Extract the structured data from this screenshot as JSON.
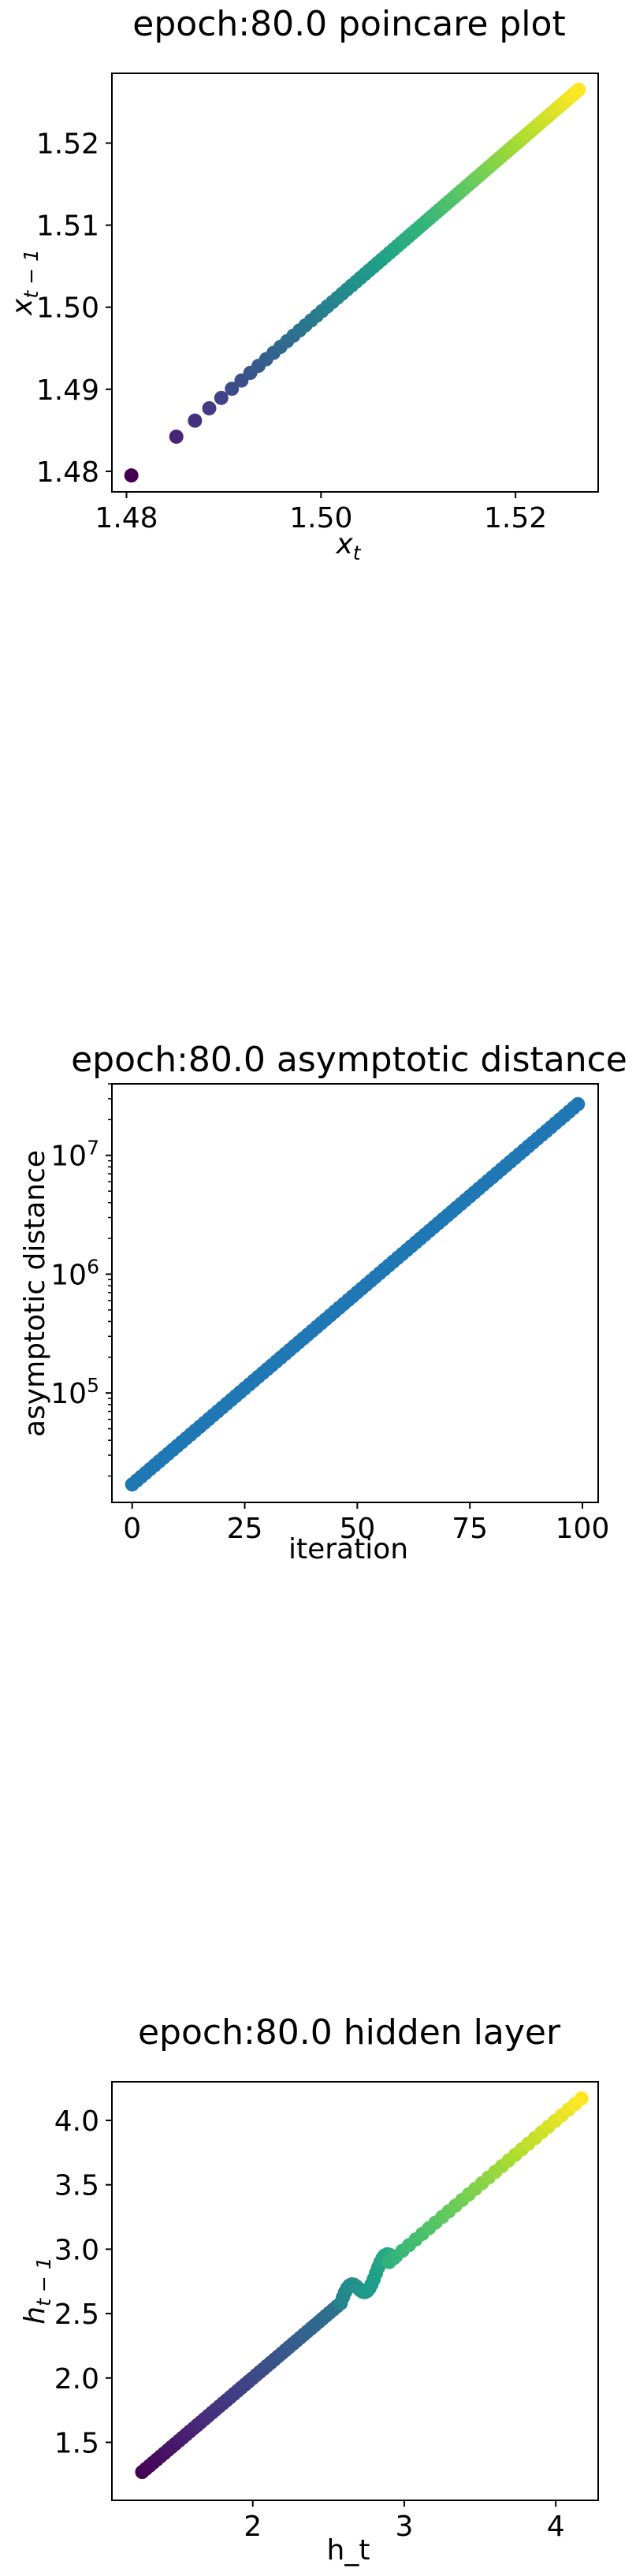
{
  "chart_data": [
    {
      "type": "scatter",
      "title": "epoch:80.0 poincare plot",
      "xlabel_main": "x",
      "xlabel_sub": "t",
      "ylabel_main": "x",
      "ylabel_sub": "t − 1",
      "xlim": [
        1.4785,
        1.5285
      ],
      "ylim": [
        1.4775,
        1.5285
      ],
      "xticks": [
        1.48,
        1.5,
        1.52
      ],
      "xtick_labels": [
        "1.48",
        "1.50",
        "1.52"
      ],
      "yticks": [
        1.48,
        1.49,
        1.5,
        1.51,
        1.52
      ],
      "ytick_labels": [
        "1.48",
        "1.49",
        "1.50",
        "1.51",
        "1.52"
      ],
      "colormap": "viridis",
      "points": {
        "n": 100,
        "x_start": 1.4805,
        "x_end": 1.5265,
        "y_start": 1.4795,
        "y_end": 1.5265,
        "spacing": "decreasing"
      }
    },
    {
      "type": "scatter",
      "title": "epoch:80.0 asymptotic distance",
      "xlabel": "iteration",
      "ylabel": "asymptotic distance",
      "yscale": "log",
      "xlim": [
        -4.5,
        103.5
      ],
      "ylim": [
        12000,
        40000000
      ],
      "xticks": [
        0,
        25,
        50,
        75,
        100
      ],
      "xtick_labels": [
        "0",
        "25",
        "50",
        "75",
        "100"
      ],
      "yticks": [
        100000,
        1000000,
        10000000
      ],
      "ytick_labels": [
        {
          "base": "10",
          "exp": "5"
        },
        {
          "base": "10",
          "exp": "6"
        },
        {
          "base": "10",
          "exp": "7"
        }
      ],
      "color": "#1f77b4",
      "points": {
        "n": 100,
        "x_start": 0,
        "x_end": 99,
        "y_start": 17000,
        "y_end": 27000000
      }
    },
    {
      "type": "scatter",
      "title": "epoch:80.0 hidden layer",
      "xlabel": "h_t",
      "ylabel_main": "h",
      "ylabel_sub": "t − 1",
      "xlim": [
        1.07,
        4.28
      ],
      "ylim": [
        1.05,
        4.3
      ],
      "xticks": [
        2,
        3,
        4
      ],
      "xtick_labels": [
        "2",
        "3",
        "4"
      ],
      "yticks": [
        1.5,
        2.0,
        2.5,
        3.0,
        3.5,
        4.0
      ],
      "ytick_labels": [
        "1.5",
        "2.0",
        "2.5",
        "3.0",
        "3.5",
        "4.0"
      ],
      "colormap": "viridis",
      "points": {
        "diagonal": {
          "n": 55,
          "start": 1.27,
          "end": 2.58,
          "t_start": 0.0,
          "t_end": 0.38
        },
        "cluster": {
          "n": 25,
          "x_start": 2.58,
          "x_end": 2.93,
          "y_start": 2.58,
          "y_end": 2.93,
          "t_start": 0.45,
          "t_end": 0.62
        },
        "tail": {
          "n": 30,
          "start": 2.9,
          "end": 4.17,
          "t_start": 0.65,
          "t_end": 1.0
        }
      }
    }
  ]
}
